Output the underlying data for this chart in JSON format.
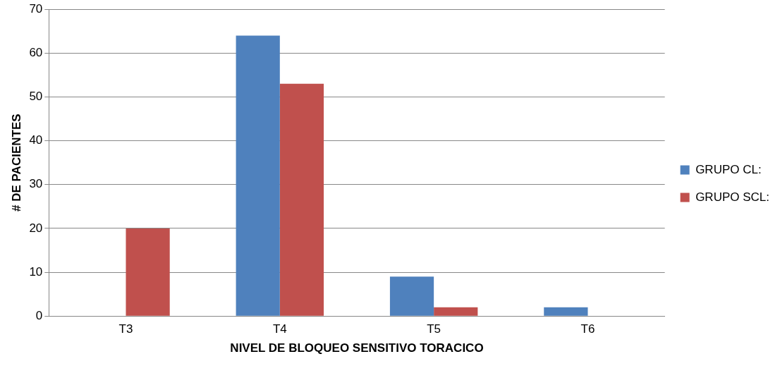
{
  "chart_data": {
    "type": "bar",
    "xlabel": "NIVEL DE BLOQUEO SENSITIVO TORACICO",
    "ylabel": "# DE PACIENTES",
    "categories": [
      "T3",
      "T4",
      "T5",
      "T6"
    ],
    "series": [
      {
        "name": "GRUPO CL:",
        "color": "#4f81bd",
        "values": [
          0,
          64,
          9,
          2
        ]
      },
      {
        "name": "GRUPO SCL:",
        "color": "#c0504d",
        "values": [
          20,
          53,
          2,
          0
        ]
      }
    ],
    "ylim": [
      0,
      70
    ],
    "yticks": [
      0,
      10,
      20,
      30,
      40,
      50,
      60,
      70
    ],
    "grid": "y",
    "legend": "right"
  }
}
